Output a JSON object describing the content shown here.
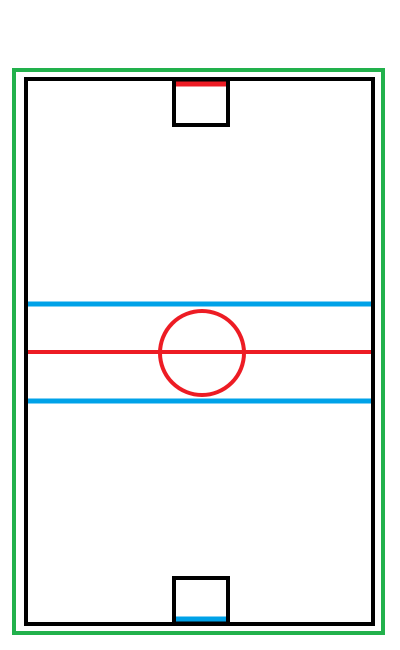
{
  "colors": {
    "background": "#ffffff",
    "outer_border": "#22b14c",
    "rink_border": "#000000",
    "blue_line": "#00a2e8",
    "red_line": "#ed1c24",
    "top_goal_line": "#ed1c24",
    "bottom_goal_line": "#00a2e8"
  },
  "elements": {
    "outer_border": "rink-outer-border",
    "rink_border": "rink-boundary",
    "top_goal": "top-goal",
    "bottom_goal": "bottom-goal",
    "upper_blue_line": "upper-blue-line",
    "center_red_line": "center-red-line",
    "lower_blue_line": "lower-blue-line",
    "center_circle": "center-circle"
  }
}
